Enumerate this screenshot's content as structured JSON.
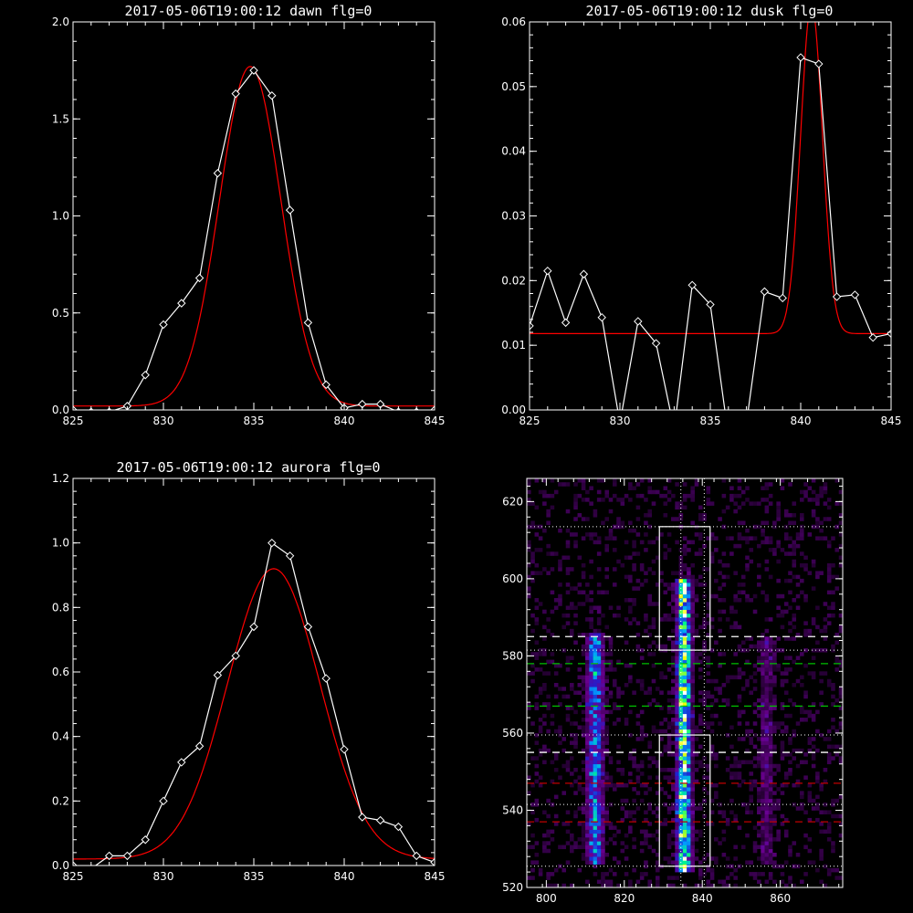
{
  "chart_data": [
    {
      "type": "line",
      "panel": "dawn",
      "title": "2017-05-06T19:00:12 dawn flg=0",
      "xlim": [
        825,
        845
      ],
      "ylim": [
        0,
        2.0
      ],
      "xticks": [
        "825",
        "830",
        "835",
        "840",
        "845"
      ],
      "yticks": [
        "0.0",
        "0.5",
        "1.0",
        "1.5",
        "2.0"
      ],
      "xtick_values": [
        825,
        830,
        835,
        840,
        845
      ],
      "ytick_values": [
        0,
        0.5,
        1.0,
        1.5,
        2.0
      ],
      "series": [
        {
          "role": "data",
          "color": "#ffffff",
          "marker": "diamond",
          "x": [
            825,
            826,
            827,
            828,
            829,
            830,
            831,
            832,
            833,
            834,
            835,
            836,
            837,
            838,
            839,
            840,
            841,
            842,
            843,
            844,
            845
          ],
          "y": [
            0.0,
            -0.01,
            -0.01,
            0.02,
            0.18,
            0.44,
            0.55,
            0.68,
            1.22,
            1.63,
            1.75,
            1.62,
            1.03,
            0.45,
            0.13,
            0.01,
            0.03,
            0.03,
            -0.01,
            -0.01,
            0.0
          ]
        },
        {
          "role": "fit",
          "color": "#ff0000",
          "model": "gaussian",
          "amplitude": 1.75,
          "center": 834.8,
          "sigma": 1.7,
          "offset": 0.02
        }
      ]
    },
    {
      "type": "line",
      "panel": "dusk",
      "title": "2017-05-06T19:00:12 dusk flg=0",
      "xlim": [
        825,
        845
      ],
      "ylim": [
        0,
        0.06
      ],
      "xticks": [
        "825",
        "830",
        "835",
        "840",
        "845"
      ],
      "yticks": [
        "0.00",
        "0.01",
        "0.02",
        "0.03",
        "0.04",
        "0.05",
        "0.06"
      ],
      "xtick_values": [
        825,
        830,
        835,
        840,
        845
      ],
      "ytick_values": [
        0,
        0.01,
        0.02,
        0.03,
        0.04,
        0.05,
        0.06
      ],
      "series": [
        {
          "role": "data",
          "color": "#ffffff",
          "marker": "diamond",
          "x": [
            825,
            826,
            827,
            828,
            829,
            830,
            831,
            832,
            833,
            834,
            835,
            836,
            837,
            838,
            839,
            840,
            841,
            842,
            843,
            844,
            845
          ],
          "y": [
            0.013,
            0.0215,
            0.0135,
            0.021,
            0.0143,
            -0.002,
            0.0137,
            0.0103,
            -0.003,
            0.0193,
            0.0163,
            -0.004,
            -0.002,
            0.0183,
            0.0173,
            0.0545,
            0.0535,
            0.0175,
            0.0178,
            0.0112,
            0.0118
          ]
        },
        {
          "role": "fit",
          "color": "#ff0000",
          "model": "gaussian",
          "amplitude": 0.051,
          "center": 840.6,
          "sigma": 0.6,
          "offset": 0.0118
        }
      ]
    },
    {
      "type": "line",
      "panel": "aurora",
      "title": "2017-05-06T19:00:12 aurora flg=0",
      "xlim": [
        825,
        845
      ],
      "ylim": [
        0,
        1.2
      ],
      "xticks": [
        "825",
        "830",
        "835",
        "840",
        "845"
      ],
      "yticks": [
        "0.0",
        "0.2",
        "0.4",
        "0.6",
        "0.8",
        "1.0",
        "1.2"
      ],
      "xtick_values": [
        825,
        830,
        835,
        840,
        845
      ],
      "ytick_values": [
        0,
        0.2,
        0.4,
        0.6,
        0.8,
        1.0,
        1.2
      ],
      "series": [
        {
          "role": "data",
          "color": "#ffffff",
          "marker": "diamond",
          "x": [
            825,
            826,
            827,
            828,
            829,
            830,
            831,
            832,
            833,
            834,
            835,
            836,
            837,
            838,
            839,
            840,
            841,
            842,
            843,
            844,
            845
          ],
          "y": [
            0.0,
            -0.01,
            0.03,
            0.03,
            0.08,
            0.2,
            0.32,
            0.37,
            0.59,
            0.65,
            0.74,
            1.0,
            0.96,
            0.74,
            0.58,
            0.36,
            0.15,
            0.14,
            0.12,
            0.03,
            0.01
          ]
        },
        {
          "role": "fit",
          "color": "#ff0000",
          "model": "gaussian",
          "amplitude": 0.9,
          "center": 836.1,
          "sigma": 2.55,
          "offset": 0.02
        }
      ]
    },
    {
      "type": "heatmap",
      "panel": "image",
      "xlim": [
        795,
        876
      ],
      "ylim": [
        520,
        626
      ],
      "xticks": [
        "800",
        "820",
        "840",
        "860"
      ],
      "yticks": [
        "520",
        "540",
        "560",
        "580",
        "600",
        "620"
      ],
      "xtick_values": [
        800,
        820,
        840,
        860
      ],
      "ytick_values": [
        520,
        540,
        560,
        580,
        600,
        620
      ],
      "colormap": [
        "#000000",
        "#3a0050",
        "#6a0090",
        "#2020d0",
        "#00a0ff",
        "#00ff80",
        "#ffff00",
        "#ffffff"
      ],
      "columns": [
        {
          "center": 812.5,
          "halfwidth": 2.2,
          "y_range": [
            526,
            586
          ],
          "peak": 0.58
        },
        {
          "center": 835.3,
          "halfwidth": 1.8,
          "y_range": [
            524,
            600
          ],
          "peak": 0.95
        },
        {
          "center": 856.5,
          "halfwidth": 2.0,
          "y_range": [
            526,
            585
          ],
          "peak": 0.22
        }
      ],
      "boxes": [
        {
          "color": "#ffffff",
          "x": [
            829,
            842
          ],
          "y": [
            581.5,
            613.5
          ]
        },
        {
          "color": "#ffffff",
          "x": [
            829,
            842
          ],
          "y": [
            525.5,
            559.5
          ]
        }
      ],
      "dotted_h": {
        "color": "#ffffff",
        "y": [
          613.5,
          581.5,
          559.5,
          541.5,
          525.5
        ]
      },
      "dotted_v": {
        "color": "#ffffff",
        "x": [
          834.5,
          840.5
        ]
      },
      "dashed_h": [
        {
          "color": "#ffffff",
          "y": 585
        },
        {
          "color": "#00c000",
          "y": 578
        },
        {
          "color": "#00c000",
          "y": 567
        },
        {
          "color": "#ffffff",
          "y": 555
        },
        {
          "color": "#c00000",
          "y": 547
        },
        {
          "color": "#c00000",
          "y": 537
        }
      ]
    }
  ]
}
